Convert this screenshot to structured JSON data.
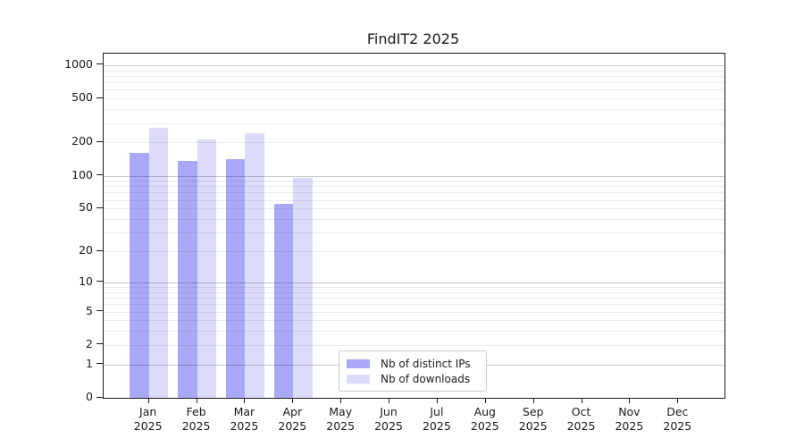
{
  "chart_data": {
    "type": "bar",
    "title": "FindIT2 2025",
    "categories": [
      "Jan",
      "Feb",
      "Mar",
      "Apr",
      "May",
      "Jun",
      "Jul",
      "Aug",
      "Sep",
      "Oct",
      "Nov",
      "Dec"
    ],
    "category_year": "2025",
    "series": [
      {
        "name": "Nb of distinct IPs",
        "color": "#a9a9f7",
        "values": [
          160,
          137,
          141,
          55,
          0,
          0,
          0,
          0,
          0,
          0,
          0,
          0
        ]
      },
      {
        "name": "Nb of downloads",
        "color": "#dbdbfa",
        "values": [
          272,
          214,
          243,
          95,
          0,
          0,
          0,
          0,
          0,
          0,
          0,
          0
        ]
      }
    ],
    "yticks": [
      0,
      1,
      2,
      5,
      10,
      20,
      50,
      100,
      200,
      500,
      1000
    ],
    "ylim": [
      0,
      1200
    ],
    "yscale": "log1p",
    "grid": true,
    "minor_grid_decades": [
      1,
      10,
      100
    ],
    "legend_position": "lower center",
    "axis_color": "#1a1a1a",
    "major_grid_color": "#c6c6c6",
    "minor_grid_color": "#ececec"
  }
}
